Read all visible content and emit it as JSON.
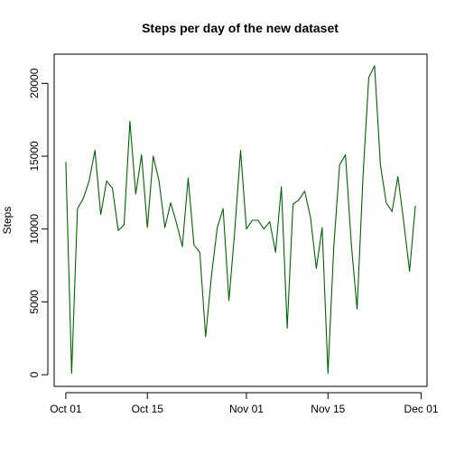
{
  "chart_data": {
    "type": "line",
    "title": "Steps per day of the new dataset",
    "xlabel": "",
    "ylabel": "Steps",
    "line_color": "#006400",
    "x_start": "2012-10-01",
    "x_end": "2012-11-30",
    "xlim": [
      "2012-09-29",
      "2012-12-02"
    ],
    "ylim": [
      -800,
      22000
    ],
    "x_ticks": [
      {
        "date": "2012-10-01",
        "label": "Oct 01"
      },
      {
        "date": "2012-10-15",
        "label": "Oct 15"
      },
      {
        "date": "2012-11-01",
        "label": "Nov 01"
      },
      {
        "date": "2012-11-15",
        "label": "Nov 15"
      },
      {
        "date": "2012-12-01",
        "label": "Dec 01"
      }
    ],
    "y_ticks": [
      0,
      5000,
      10000,
      15000,
      20000
    ],
    "series": [
      {
        "values": [
          14600,
          100,
          11400,
          12100,
          13300,
          15400,
          11000,
          13300,
          12800,
          9900,
          10300,
          17400,
          12400,
          15100,
          10100,
          15000,
          13300,
          10100,
          11800,
          10400,
          8800,
          13500,
          8900,
          8400,
          2600,
          6800,
          10100,
          11400,
          5100,
          9900,
          15400,
          10000,
          10600,
          10600,
          10000,
          10500,
          8400,
          12900,
          3200,
          11700,
          12000,
          12600,
          10800,
          7300,
          10100,
          100,
          8800,
          14400,
          15100,
          9000,
          4500,
          13500,
          20400,
          21200,
          14400,
          11800,
          11200,
          13600,
          10500,
          7100,
          11600
        ]
      }
    ]
  }
}
